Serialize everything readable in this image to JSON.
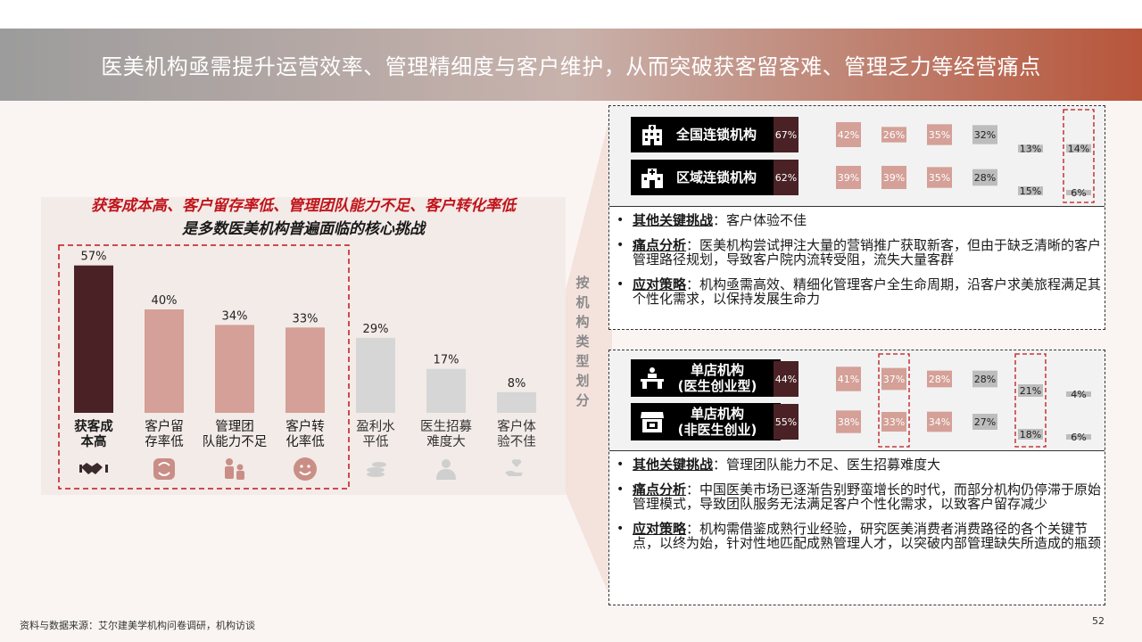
{
  "header": {
    "title": "医美机构亟需提升运营效率、管理精细度与客户维护，从而突破获客留客难、管理乏力等经营痛点"
  },
  "headline": {
    "line1": "获客成本高、客户留存率低、管理团队能力不足、客户转化率低",
    "line2": "是多数医美机构普遍面临的核心挑战"
  },
  "vertical_label": [
    "按",
    "机",
    "构",
    "类",
    "型",
    "划",
    "分"
  ],
  "colors": {
    "dark": "#4a2226",
    "rose": "#d4a097",
    "gray": "#d6d6d6",
    "gray_dark": "#bdbdbd",
    "accent_red": "#c0141a"
  },
  "chart_data": [
    {
      "type": "bar",
      "categories": [
        "获客成本高",
        "客户留存率低",
        "管理团队能力不足",
        "客户转化率低",
        "盈利水平低",
        "医生招募难度大",
        "客户体验不佳"
      ],
      "category_lines": [
        [
          "获客成",
          "本高"
        ],
        [
          "客户留",
          "存率低"
        ],
        [
          "管理团",
          "队能力不足"
        ],
        [
          "客户转",
          "化率低"
        ],
        [
          "盈利水",
          "平低"
        ],
        [
          "医生招募",
          "难度大"
        ],
        [
          "客户体",
          "验不佳"
        ]
      ],
      "values": [
        57,
        40,
        34,
        33,
        29,
        17,
        8
      ],
      "value_labels": [
        "57%",
        "40%",
        "34%",
        "33%",
        "29%",
        "17%",
        "8%"
      ],
      "icons": [
        "handshake-icon",
        "face-refresh-icon",
        "team-icon",
        "smile-icon",
        "coins-icon",
        "doctor-icon",
        "heart-hand-icon"
      ],
      "highlighted": [
        0,
        1,
        2,
        3
      ],
      "ylim": [
        0,
        60
      ]
    },
    {
      "type": "bar",
      "series": [
        {
          "name": "全国连锁机构",
          "values": [
            67,
            42,
            26,
            35,
            32,
            13,
            14
          ],
          "labels": [
            "67%",
            "42%",
            "26%",
            "35%",
            "32%",
            "13%",
            "14%"
          ]
        },
        {
          "name": "区域连锁机构",
          "values": [
            62,
            39,
            39,
            35,
            28,
            15,
            6
          ],
          "labels": [
            "62%",
            "39%",
            "39%",
            "35%",
            "28%",
            "15%",
            "6%"
          ]
        }
      ],
      "highlighted_columns": [
        6
      ],
      "ylim": [
        0,
        70
      ]
    },
    {
      "type": "bar",
      "series": [
        {
          "name": "单店机构（医生创业型）",
          "name_lines": [
            "单店机构",
            "(医生创业型)"
          ],
          "values": [
            44,
            41,
            37,
            28,
            28,
            21,
            4
          ],
          "labels": [
            "44%",
            "41%",
            "37%",
            "28%",
            "28%",
            "21%",
            "4%"
          ]
        },
        {
          "name": "单店机构（非医生创业）",
          "name_lines": [
            "单店机构",
            "(非医生创业)"
          ],
          "values": [
            55,
            38,
            33,
            34,
            27,
            18,
            6
          ],
          "labels": [
            "55%",
            "38%",
            "33%",
            "34%",
            "27%",
            "18%",
            "6%"
          ]
        }
      ],
      "highlighted_columns": [
        2,
        5
      ],
      "ylim": [
        0,
        70
      ]
    }
  ],
  "top_box": {
    "labels": [
      "全国连锁机构",
      "区域连锁机构"
    ],
    "bullets": [
      {
        "key": "其他关键挑战",
        "text": "：客户体验不佳"
      },
      {
        "key": "痛点分析",
        "text": "：医美机构尝试押注大量的营销推广获取新客，但由于缺乏清晰的客户管理路径规划，导致客户院内流转受阻，流失大量客群"
      },
      {
        "key": "应对策略",
        "text": "：机构亟需高效、精细化管理客户全生命周期，沿客户求美旅程满足其个性化需求，以保持发展生命力"
      }
    ]
  },
  "bottom_box": {
    "labels": [
      "单店机构\n(医生创业型)",
      "单店机构\n(非医生创业)"
    ],
    "bullets": [
      {
        "key": "其他关键挑战",
        "text": "：管理团队能力不足、医生招募难度大"
      },
      {
        "key": "痛点分析",
        "text": "：中国医美市场已逐渐告别野蛮增长的时代，而部分机构仍停滞于原始管理模式，导致团队服务无法满足客户个性化需求，以致客户留存减少"
      },
      {
        "key": "应对策略",
        "text": "：机构需借鉴成熟行业经验，研究医美消费者消费路径的各个关键节点，以终为始，针对性地匹配成熟管理人才，以突破内部管理缺失所造成的瓶颈"
      }
    ]
  },
  "footer": {
    "source": "资料与数据来源：艾尔建美学机构问卷调研，机构访谈",
    "page": "52"
  }
}
